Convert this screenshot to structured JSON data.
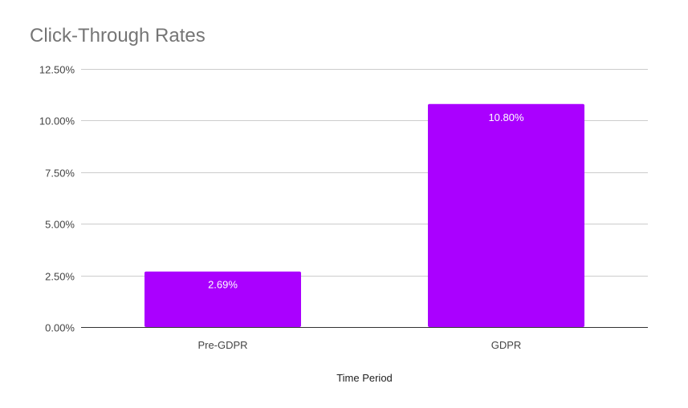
{
  "chart_data": {
    "type": "bar",
    "title": "Click-Through Rates",
    "xlabel": "Time Period",
    "ylabel": "",
    "categories": [
      "Pre-GDPR",
      "GDPR"
    ],
    "values": [
      2.69,
      10.8
    ],
    "data_labels": [
      "2.69%",
      "10.80%"
    ],
    "ylim": [
      0,
      12.5
    ],
    "yticks": [
      0,
      2.5,
      5,
      7.5,
      10,
      12.5
    ],
    "ytick_labels": [
      "0.00%",
      "2.50%",
      "5.00%",
      "7.50%",
      "10.00%",
      "12.50%"
    ],
    "bar_color": "#aa00ff",
    "grid": true,
    "legend": "none"
  }
}
